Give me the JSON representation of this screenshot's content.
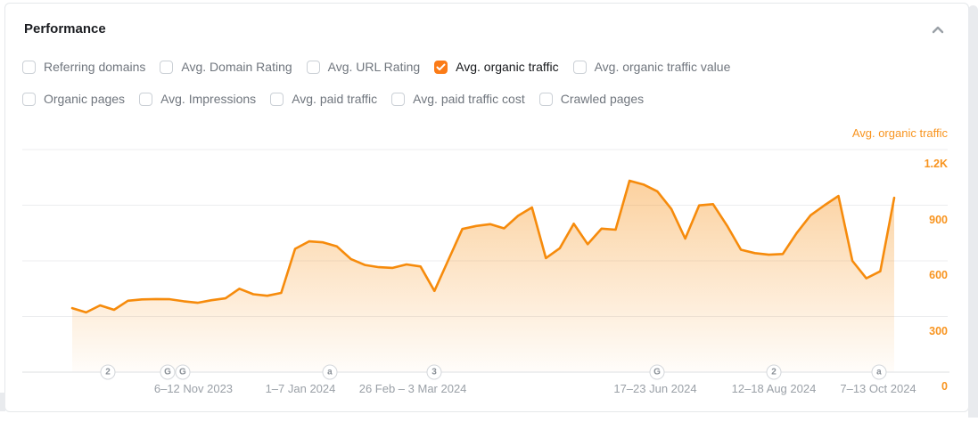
{
  "panel": {
    "title": "Performance",
    "collapse_icon": "chevron-up"
  },
  "metrics": {
    "row1": [
      {
        "label": "Referring domains",
        "checked": false
      },
      {
        "label": "Avg. Domain Rating",
        "checked": false
      },
      {
        "label": "Avg. URL Rating",
        "checked": false
      },
      {
        "label": "Avg. organic traffic",
        "checked": true
      },
      {
        "label": "Avg. organic traffic value",
        "checked": false
      }
    ],
    "row2": [
      {
        "label": "Organic pages",
        "checked": false
      },
      {
        "label": "Avg. Impressions",
        "checked": false
      },
      {
        "label": "Avg. paid traffic",
        "checked": false
      },
      {
        "label": "Avg. paid traffic cost",
        "checked": false
      },
      {
        "label": "Crawled pages",
        "checked": false
      }
    ]
  },
  "colors": {
    "accent_orange": "#f8941f",
    "line_orange": "#f68b0c",
    "checkbox_orange": "#fb7b17",
    "grid_gray": "#ecedef",
    "axis_gray": "#dcdfe2"
  },
  "chart_data": {
    "type": "area",
    "title": "Avg. organic traffic",
    "legend_position": "top-right",
    "grid": true,
    "ylim": [
      0,
      1240
    ],
    "x_unit": "week",
    "weekly_values": [
      345,
      322,
      360,
      336,
      385,
      392,
      394,
      393,
      382,
      374,
      388,
      398,
      450,
      420,
      412,
      427,
      665,
      705,
      700,
      678,
      610,
      578,
      566,
      562,
      581,
      570,
      438,
      605,
      772,
      788,
      798,
      775,
      843,
      888,
      615,
      668,
      800,
      690,
      774,
      768,
      1032,
      1012,
      975,
      880,
      720,
      899,
      906,
      790,
      660,
      642,
      633,
      637,
      750,
      846,
      900,
      950,
      600,
      506,
      544,
      940
    ],
    "y_ticks": [
      {
        "label": "1.2K",
        "value": 1200
      },
      {
        "label": "900",
        "value": 900
      },
      {
        "label": "600",
        "value": 600
      },
      {
        "label": "300",
        "value": 300
      },
      {
        "label": "0",
        "value": 0
      }
    ],
    "x_ticks": [
      {
        "label": "6–12 Nov 2023",
        "week": 8.7
      },
      {
        "label": "1–7 Jan 2024",
        "week": 16.38
      },
      {
        "label": "26 Feb – 3 Mar 2024",
        "week": 24.45
      },
      {
        "label": "17–23 Jun 2024",
        "week": 41.85
      },
      {
        "label": "12–18 Aug 2024",
        "week": 50.36
      },
      {
        "label": "7–13 Oct 2024",
        "week": 57.85
      }
    ],
    "event_badges": [
      {
        "glyph": "2",
        "week": 2.56
      },
      {
        "glyph": "G",
        "week": 6.85
      },
      {
        "glyph": "G",
        "week": 7.93
      },
      {
        "glyph": "a",
        "week": 18.49
      },
      {
        "glyph": "3",
        "week": 25.98
      },
      {
        "glyph": "G",
        "week": 41.98
      },
      {
        "glyph": "2",
        "week": 50.36
      },
      {
        "glyph": "a",
        "week": 57.91
      }
    ]
  }
}
